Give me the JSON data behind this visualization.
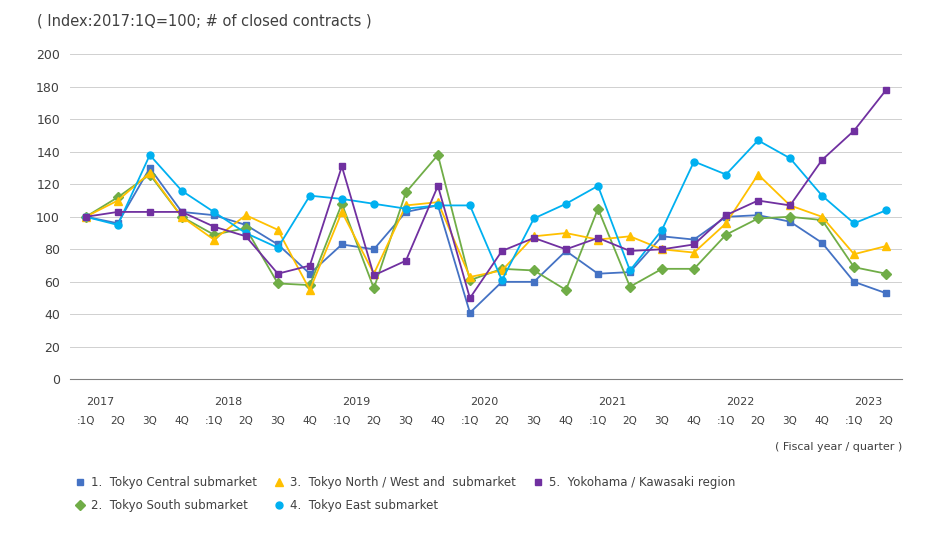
{
  "title": "( Index:2017:1Q=100; # of closed contracts )",
  "fiscal_label": "( Fiscal year / quarter )",
  "ylim": [
    0,
    200
  ],
  "yticks": [
    0,
    20,
    40,
    60,
    80,
    100,
    120,
    140,
    160,
    180,
    200
  ],
  "year_labels": [
    "2017",
    "2018",
    "2019",
    "2020",
    "2021",
    "2022",
    "2023"
  ],
  "year_positions": [
    0,
    4,
    8,
    12,
    16,
    20,
    24
  ],
  "q_sublabels": [
    ":1Q",
    "2Q",
    "3Q",
    "4Q",
    ":1Q",
    "2Q",
    "3Q",
    "4Q",
    ":1Q",
    "2Q",
    "3Q",
    "4Q",
    ":1Q",
    "2Q",
    "3Q",
    "4Q",
    ":1Q",
    "2Q",
    "3Q",
    "4Q",
    ":1Q",
    "2Q",
    "3Q",
    "4Q",
    ":1Q",
    "2Q"
  ],
  "series": [
    {
      "key": "1_Tokyo_Central",
      "label": "1.  Tokyo Central submarket",
      "color": "#4472c4",
      "marker": "s",
      "markersize": 5,
      "values": [
        100,
        96,
        130,
        103,
        101,
        95,
        83,
        65,
        83,
        80,
        103,
        107,
        41,
        60,
        60,
        79,
        65,
        66,
        88,
        86,
        100,
        101,
        97,
        84,
        60,
        53
      ]
    },
    {
      "key": "2_Tokyo_South",
      "label": "2.  Tokyo South submarket",
      "color": "#70ad47",
      "marker": "D",
      "markersize": 5,
      "values": [
        100,
        112,
        126,
        100,
        89,
        93,
        59,
        58,
        108,
        56,
        115,
        138,
        61,
        68,
        67,
        55,
        105,
        57,
        68,
        68,
        89,
        99,
        100,
        98,
        69,
        65
      ]
    },
    {
      "key": "3_Tokyo_NorthWest",
      "label": "3.  Tokyo North / West and  submarket",
      "color": "#ffc000",
      "marker": "^",
      "markersize": 6,
      "values": [
        100,
        110,
        127,
        100,
        86,
        101,
        92,
        55,
        103,
        65,
        107,
        109,
        63,
        67,
        88,
        90,
        86,
        88,
        80,
        78,
        96,
        126,
        107,
        100,
        77,
        82
      ]
    },
    {
      "key": "4_Tokyo_East",
      "label": "4.  Tokyo East submarket",
      "color": "#00b0f0",
      "marker": "o",
      "markersize": 5,
      "values": [
        100,
        95,
        138,
        116,
        103,
        90,
        81,
        113,
        111,
        108,
        105,
        107,
        107,
        61,
        99,
        108,
        119,
        67,
        92,
        134,
        126,
        147,
        136,
        113,
        96,
        104
      ]
    },
    {
      "key": "5_Yokohama_Kawasaki",
      "label": "5.  Yokohama / Kawasaki region",
      "color": "#7030a0",
      "marker": "s",
      "markersize": 5,
      "values": [
        100,
        103,
        103,
        103,
        94,
        88,
        65,
        70,
        131,
        64,
        73,
        119,
        50,
        79,
        87,
        80,
        87,
        79,
        80,
        83,
        101,
        110,
        107,
        135,
        153,
        178
      ]
    }
  ],
  "background_color": "#ffffff",
  "grid_color": "#d0d0d0",
  "spine_color": "#808080"
}
